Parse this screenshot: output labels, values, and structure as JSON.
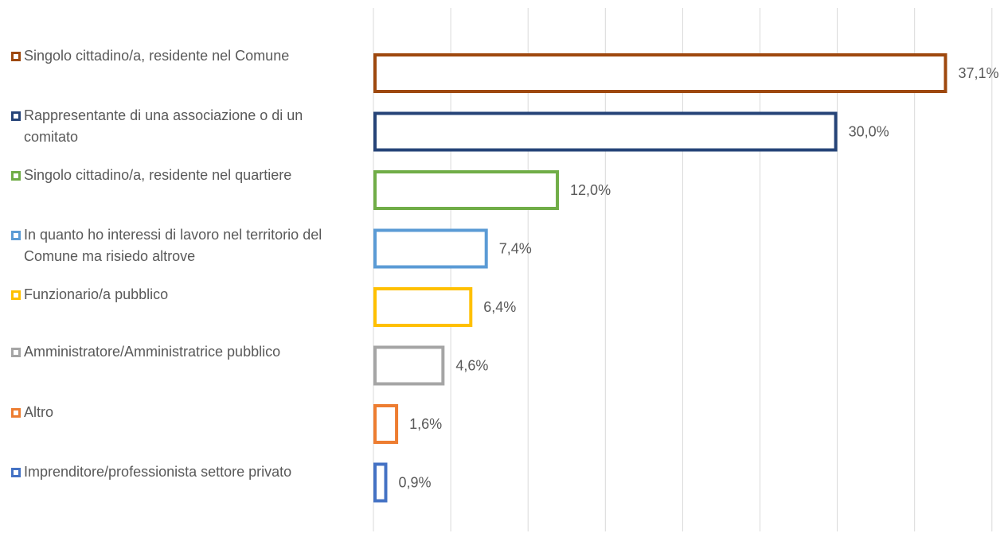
{
  "chart_data": {
    "type": "bar",
    "orientation": "horizontal",
    "xlim": [
      0,
      40
    ],
    "grid": true,
    "legend_position": "left",
    "categories": [
      "Singolo cittadino/a, residente nel Comune",
      "Rappresentante di una associazione o di un comitato",
      "Singolo cittadino/a, residente nel quartiere",
      "In quanto ho interessi di lavoro nel territorio del Comune ma risiedo altrove",
      "Funzionario/a pubblico",
      "Amministratore/Amministratrice pubblico",
      "Altro",
      "Imprenditore/professionista settore privato"
    ],
    "values": [
      37.1,
      30.0,
      12.0,
      7.4,
      6.4,
      4.6,
      1.6,
      0.9
    ],
    "data_labels": [
      "37,1%",
      "30,0%",
      "12,0%",
      "7,4%",
      "6,4%",
      "4,6%",
      "1,6%",
      "0,9%"
    ],
    "colors": [
      "#9E480E",
      "#264478",
      "#70AD47",
      "#5B9BD5",
      "#FFC000",
      "#A5A5A5",
      "#ED7D31",
      "#4472C4"
    ]
  }
}
